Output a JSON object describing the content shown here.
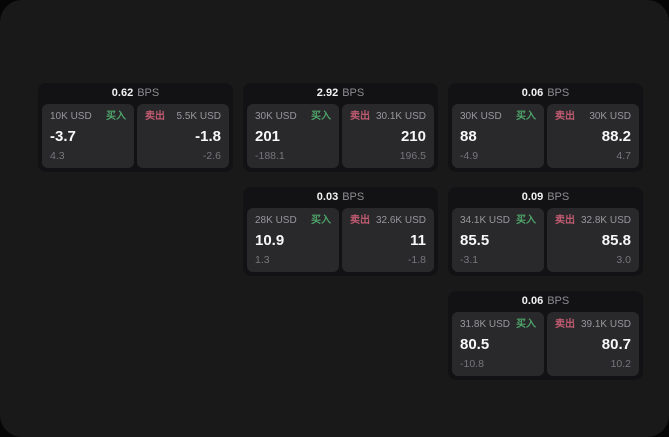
{
  "colors": {
    "buy": "#4fa26a",
    "sell": "#c05a70",
    "background": "#060606",
    "surface": "#19191a",
    "card": "#121214",
    "panel": "#29292b"
  },
  "labels": {
    "buy": "买入",
    "sell": "卖出",
    "bps": "BPS"
  },
  "cards": [
    {
      "row": 1,
      "col": 1,
      "spread": "0.62",
      "buy": {
        "quantity": "10K USD",
        "value": "-3.7",
        "sub_value": "4.3"
      },
      "sell": {
        "quantity": "5.5K USD",
        "value": "-1.8",
        "sub_value": "-2.6"
      }
    },
    {
      "row": 1,
      "col": 2,
      "spread": "2.92",
      "buy": {
        "quantity": "30K USD",
        "value": "201",
        "sub_value": "-188.1"
      },
      "sell": {
        "quantity": "30.1K USD",
        "value": "210",
        "sub_value": "196.5"
      }
    },
    {
      "row": 1,
      "col": 3,
      "spread": "0.06",
      "buy": {
        "quantity": "30K USD",
        "value": "88",
        "sub_value": "-4.9"
      },
      "sell": {
        "quantity": "30K USD",
        "value": "88.2",
        "sub_value": "4.7"
      }
    },
    {
      "row": 2,
      "col": 2,
      "spread": "0.03",
      "buy": {
        "quantity": "28K USD",
        "value": "10.9",
        "sub_value": "1.3"
      },
      "sell": {
        "quantity": "32.6K USD",
        "value": "11",
        "sub_value": "-1.8"
      }
    },
    {
      "row": 2,
      "col": 3,
      "spread": "0.09",
      "buy": {
        "quantity": "34.1K USD",
        "value": "85.5",
        "sub_value": "-3.1"
      },
      "sell": {
        "quantity": "32.8K USD",
        "value": "85.8",
        "sub_value": "3.0"
      }
    },
    {
      "row": 3,
      "col": 3,
      "spread": "0.06",
      "buy": {
        "quantity": "31.8K USD",
        "value": "80.5",
        "sub_value": "-10.8"
      },
      "sell": {
        "quantity": "39.1K USD",
        "value": "80.7",
        "sub_value": "10.2"
      }
    }
  ]
}
